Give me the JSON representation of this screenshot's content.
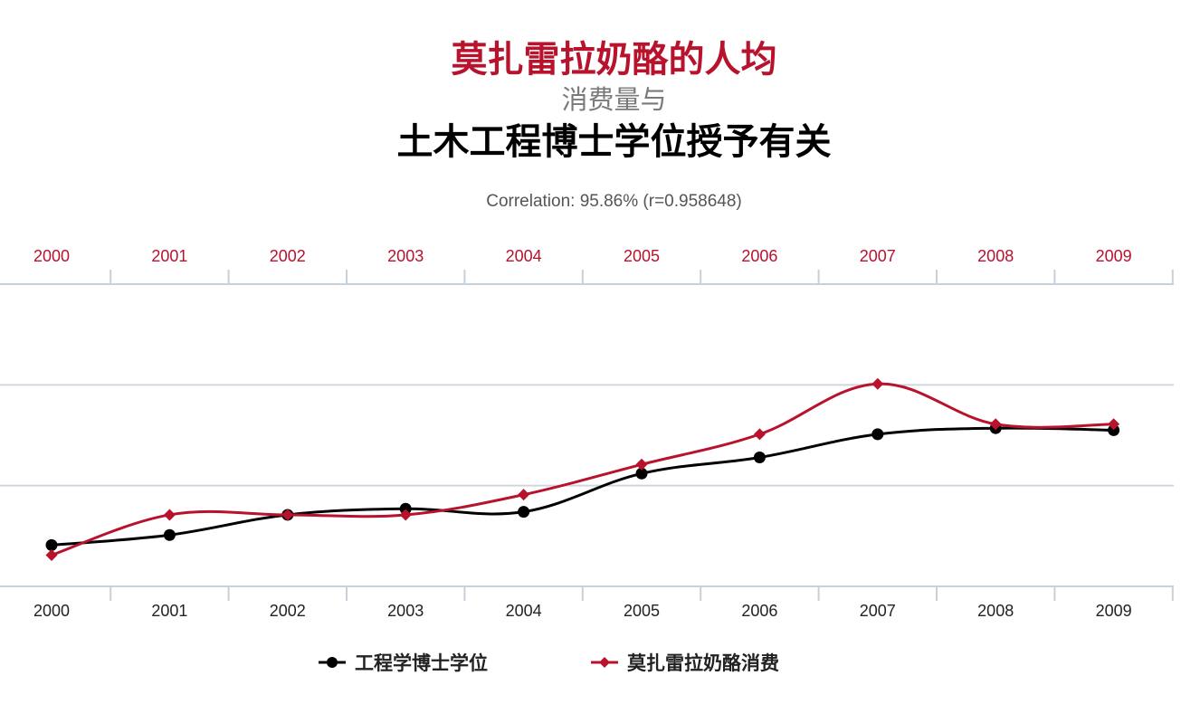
{
  "title": {
    "line1": "莫扎雷拉奶酪的人均",
    "line2": "消费量与",
    "line3": "土木工程博士学位授予有关"
  },
  "correlation_text": "Correlation: 95.86% (r=0.958648)",
  "colors": {
    "red": "#b8122d",
    "black": "#000000",
    "grid": "#d0d6dd",
    "axis": "#c5d1dc"
  },
  "legend": {
    "series1": "工程学博士学位",
    "series2": "莫扎雷拉奶酪消费"
  },
  "chart_data": {
    "type": "line",
    "categories": [
      "2000",
      "2001",
      "2002",
      "2003",
      "2004",
      "2005",
      "2006",
      "2007",
      "2008",
      "2009"
    ],
    "title": "莫扎雷拉奶酪的人均 消费量与 土木工程博士学位授予有关",
    "subtitle": "Correlation: 95.86% (r=0.958648)",
    "xlabel": "",
    "ylabel": "",
    "ylim": [
      0,
      3
    ],
    "grid": true,
    "x_ticks_top": true,
    "legend_position": "bottom",
    "series": [
      {
        "name": "工程学博士学位",
        "color": "#000000",
        "marker": "circle",
        "values": [
          0.41,
          0.51,
          0.71,
          0.77,
          0.74,
          1.12,
          1.28,
          1.51,
          1.57,
          1.55
        ]
      },
      {
        "name": "莫扎雷拉奶酪消费",
        "color": "#b8122d",
        "marker": "diamond",
        "values": [
          0.31,
          0.71,
          0.71,
          0.71,
          0.91,
          1.21,
          1.51,
          2.01,
          1.61,
          1.61
        ]
      }
    ]
  }
}
